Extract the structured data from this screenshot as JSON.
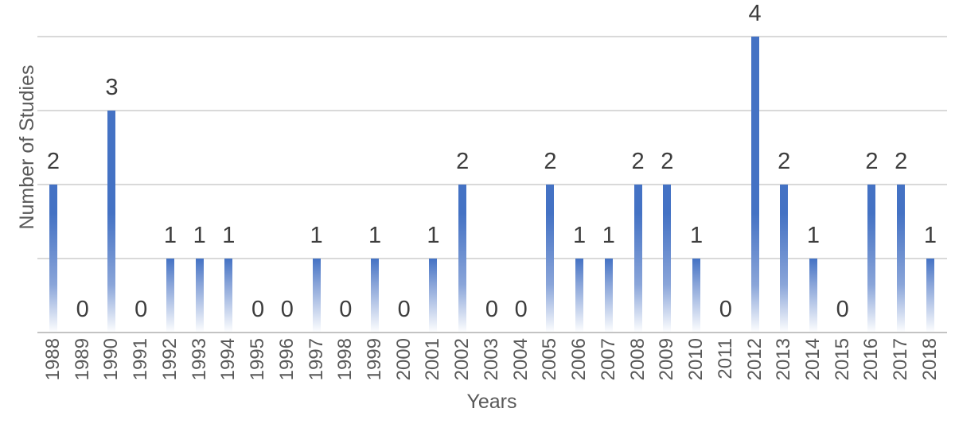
{
  "chart_data": {
    "type": "bar",
    "title": "",
    "xlabel": "Years",
    "ylabel": "Number of Studies",
    "categories": [
      "1988",
      "1989",
      "1990",
      "1991",
      "1992",
      "1993",
      "1994",
      "1995",
      "1996",
      "1997",
      "1998",
      "1999",
      "2000",
      "2001",
      "2002",
      "2003",
      "2004",
      "2005",
      "2006",
      "2007",
      "2008",
      "2009",
      "2010",
      "2011",
      "2012",
      "2013",
      "2014",
      "2015",
      "2016",
      "2017",
      "2018"
    ],
    "values": [
      2,
      0,
      3,
      0,
      1,
      1,
      1,
      0,
      0,
      1,
      0,
      1,
      0,
      1,
      2,
      0,
      0,
      2,
      1,
      1,
      2,
      2,
      1,
      0,
      4,
      2,
      1,
      0,
      2,
      2,
      1
    ],
    "data_labels_shown": true,
    "ylim": [
      0,
      4
    ],
    "y_gridline_values": [
      1,
      2,
      3,
      4
    ],
    "grid": "horizontal",
    "legend": "none",
    "colors": {
      "bar_top": "#4472c4",
      "bar_fade_mid": "#8aa5d9",
      "data_label": "#3d3d3d",
      "tick_label": "#595959",
      "axis_title": "#595959",
      "gridline": "#d9d9d9",
      "axis_line": "#c3c3c3",
      "background": "#ffffff"
    }
  }
}
